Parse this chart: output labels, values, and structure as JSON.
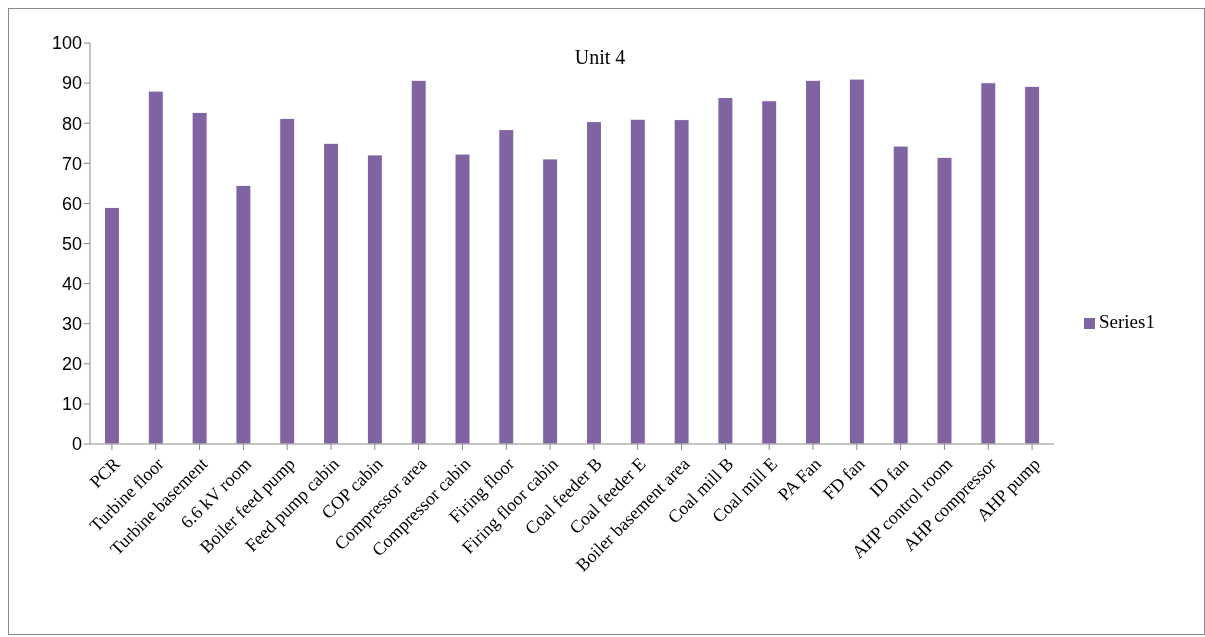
{
  "chart_data": {
    "type": "bar",
    "title": "Unit 4",
    "categories": [
      "PCR",
      "Turbine floor",
      "Turbine basement",
      "6.6 kV room",
      "Boiler feed pump",
      "Feed pump cabin",
      "COP cabin",
      "Compressor area",
      "Compressor cabin",
      "Firing floor",
      "Firing floor cabin",
      "Coal feeder B",
      "Coal feeder E",
      "Boiler basement area",
      "Coal mill B",
      "Coal mill E",
      "PA Fan",
      "FD fan",
      "ID fan",
      "AHP control room",
      "AHP compressor",
      "AHP pump"
    ],
    "series": [
      {
        "name": "Series1",
        "color": "#8064a2",
        "values": [
          59.0,
          88.0,
          82.7,
          64.5,
          81.2,
          75.0,
          72.1,
          90.7,
          72.3,
          78.4,
          71.1,
          80.4,
          81.0,
          80.9,
          86.4,
          85.6,
          90.7,
          91.0,
          74.3,
          71.5,
          90.1,
          89.2
        ]
      }
    ],
    "ylim": [
      0,
      100
    ],
    "yticks": [
      0,
      10,
      20,
      30,
      40,
      50,
      60,
      70,
      80,
      90,
      100
    ],
    "grid": false,
    "legend": "right"
  }
}
